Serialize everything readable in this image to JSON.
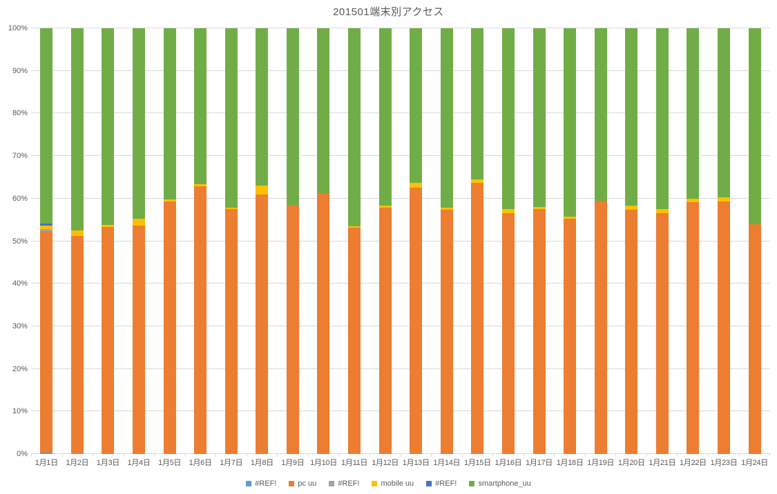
{
  "chart_data": {
    "type": "bar",
    "variant": "100-percent-stacked-column",
    "title": "201501端末別アクセス",
    "categories": [
      "1月1日",
      "1月2日",
      "1月3日",
      "1月4日",
      "1月5日",
      "1月6日",
      "1月7日",
      "1月8日",
      "1月9日",
      "1月10日",
      "1月11日",
      "1月12日",
      "1月13日",
      "1月14日",
      "1月15日",
      "1月16日",
      "1月17日",
      "1月18日",
      "1月19日",
      "1月20日",
      "1月21日",
      "1月22日",
      "1月23日",
      "1月24日"
    ],
    "series": [
      {
        "name": "#REF!",
        "color": "#5B9BD5",
        "values": [
          0.4,
          0,
          0,
          0,
          0,
          0,
          0,
          0,
          0,
          0,
          0,
          0,
          0,
          0,
          0,
          0,
          0,
          0,
          0,
          0,
          0,
          0,
          0,
          0
        ]
      },
      {
        "name": "pc uu",
        "color": "#ED7D31",
        "values": [
          52.0,
          51.2,
          53.4,
          53.6,
          59.3,
          62.9,
          57.5,
          61.0,
          58.5,
          61.1,
          53.2,
          57.9,
          62.5,
          57.4,
          63.7,
          56.5,
          57.5,
          55.3,
          59.5,
          57.3,
          56.5,
          59.2,
          59.3,
          54.0
        ]
      },
      {
        "name": "#REF!",
        "color": "#A5A5A5",
        "values": [
          0.4,
          0,
          0,
          0,
          0,
          0,
          0,
          0,
          0,
          0,
          0,
          0,
          0,
          0,
          0,
          0,
          0,
          0,
          0,
          0,
          0,
          0,
          0,
          0
        ]
      },
      {
        "name": "mobile uu",
        "color": "#FFC000",
        "values": [
          0.8,
          1.3,
          0.4,
          1.6,
          0.5,
          0.4,
          0.4,
          2.0,
          0,
          0,
          0.3,
          0.4,
          1.2,
          0.4,
          0.8,
          1.1,
          0.5,
          0.4,
          0,
          1.0,
          1.0,
          0.7,
          1.0,
          0
        ]
      },
      {
        "name": "#REF!",
        "color": "#4472C4",
        "values": [
          0.5,
          0,
          0,
          0,
          0,
          0,
          0,
          0,
          0,
          0,
          0,
          0,
          0,
          0,
          0,
          0,
          0,
          0,
          0,
          0,
          0,
          0,
          0,
          0
        ]
      },
      {
        "name": "smartphone_uu",
        "color": "#70AD47",
        "values": [
          45.9,
          47.5,
          46.2,
          44.8,
          40.2,
          36.7,
          42.1,
          37.0,
          41.5,
          38.9,
          46.5,
          41.7,
          36.3,
          42.2,
          35.5,
          42.4,
          42.0,
          44.3,
          40.5,
          41.7,
          42.5,
          40.1,
          39.7,
          46.0
        ]
      }
    ],
    "y_axis": {
      "min": 0,
      "max": 100,
      "tick_step": 10,
      "tick_labels": [
        "0%",
        "10%",
        "20%",
        "30%",
        "40%",
        "50%",
        "60%",
        "70%",
        "80%",
        "90%",
        "100%"
      ]
    },
    "grid": "horizontal",
    "legend_position": "bottom"
  },
  "palette": {
    "text": "#595959",
    "gridline": "#D9D9D9",
    "background": "#FFFFFF"
  }
}
